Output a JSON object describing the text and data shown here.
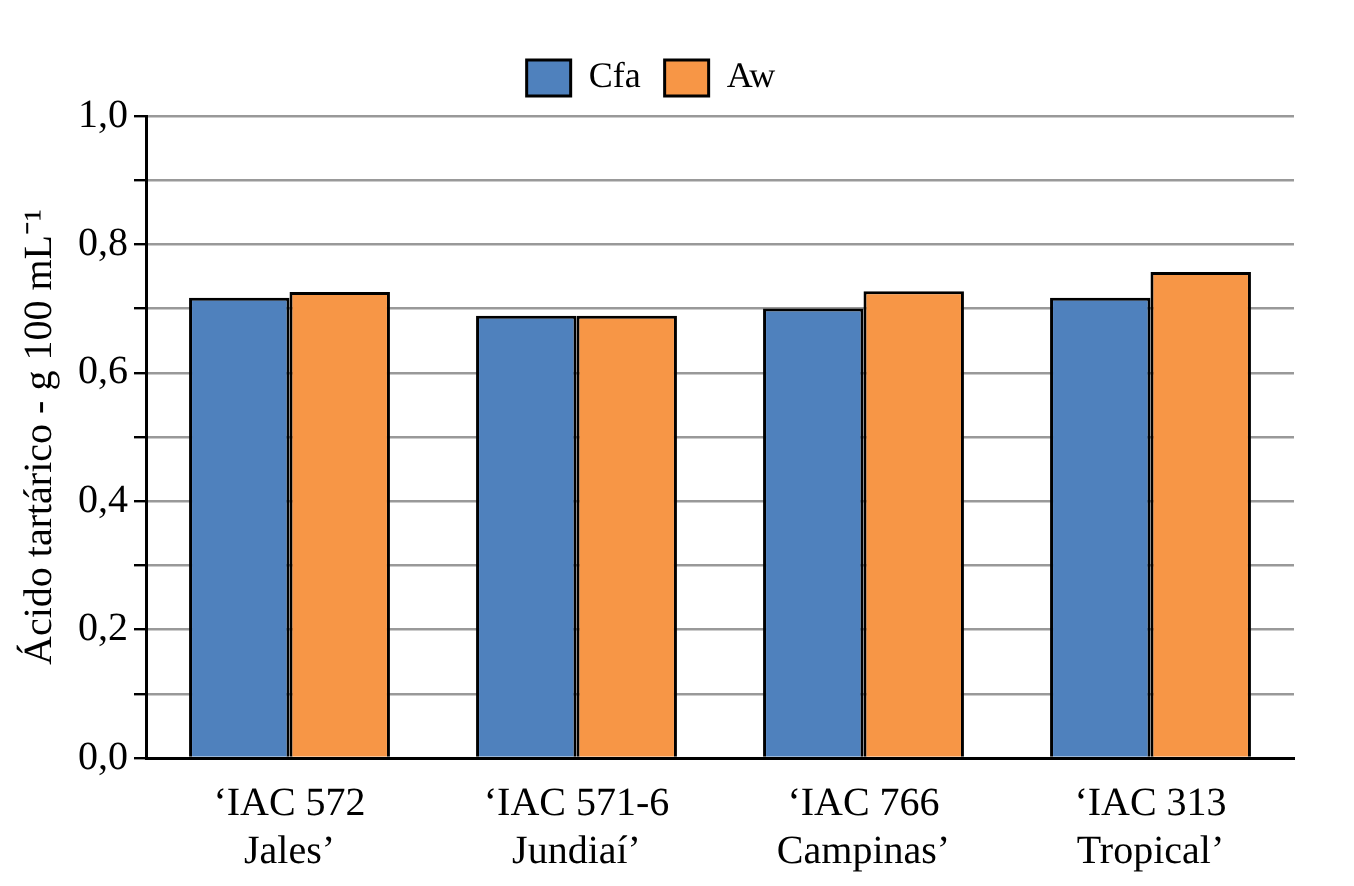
{
  "chart_data": {
    "type": "bar",
    "ylabel": "Ácido tartárico - g 100 mL⁻¹",
    "categories": [
      "‘IAC 572 Jales’",
      "‘IAC 571-6 Jundiaí’",
      "‘IAC 766 Campinas’",
      "‘IAC 313 Tropical’"
    ],
    "series": [
      {
        "name": "Cfa",
        "color": "#4f81bd",
        "values": [
          0.717,
          0.689,
          0.7,
          0.717
        ]
      },
      {
        "name": "Aw",
        "color": "#f79646",
        "values": [
          0.726,
          0.689,
          0.727,
          0.757
        ]
      }
    ],
    "ylim": [
      0,
      1
    ],
    "yticks": [
      {
        "value": 0,
        "label": "0,0"
      },
      {
        "value": 0.1,
        "label": null
      },
      {
        "value": 0.2,
        "label": "0,2"
      },
      {
        "value": 0.3,
        "label": null
      },
      {
        "value": 0.4,
        "label": "0,4"
      },
      {
        "value": 0.5,
        "label": null
      },
      {
        "value": 0.6,
        "label": "0,6"
      },
      {
        "value": 0.7,
        "label": null
      },
      {
        "value": 0.8,
        "label": "0,8"
      },
      {
        "value": 0.9,
        "label": null
      },
      {
        "value": 1,
        "label": "1,0"
      }
    ],
    "grid": "y",
    "legend": "top"
  }
}
